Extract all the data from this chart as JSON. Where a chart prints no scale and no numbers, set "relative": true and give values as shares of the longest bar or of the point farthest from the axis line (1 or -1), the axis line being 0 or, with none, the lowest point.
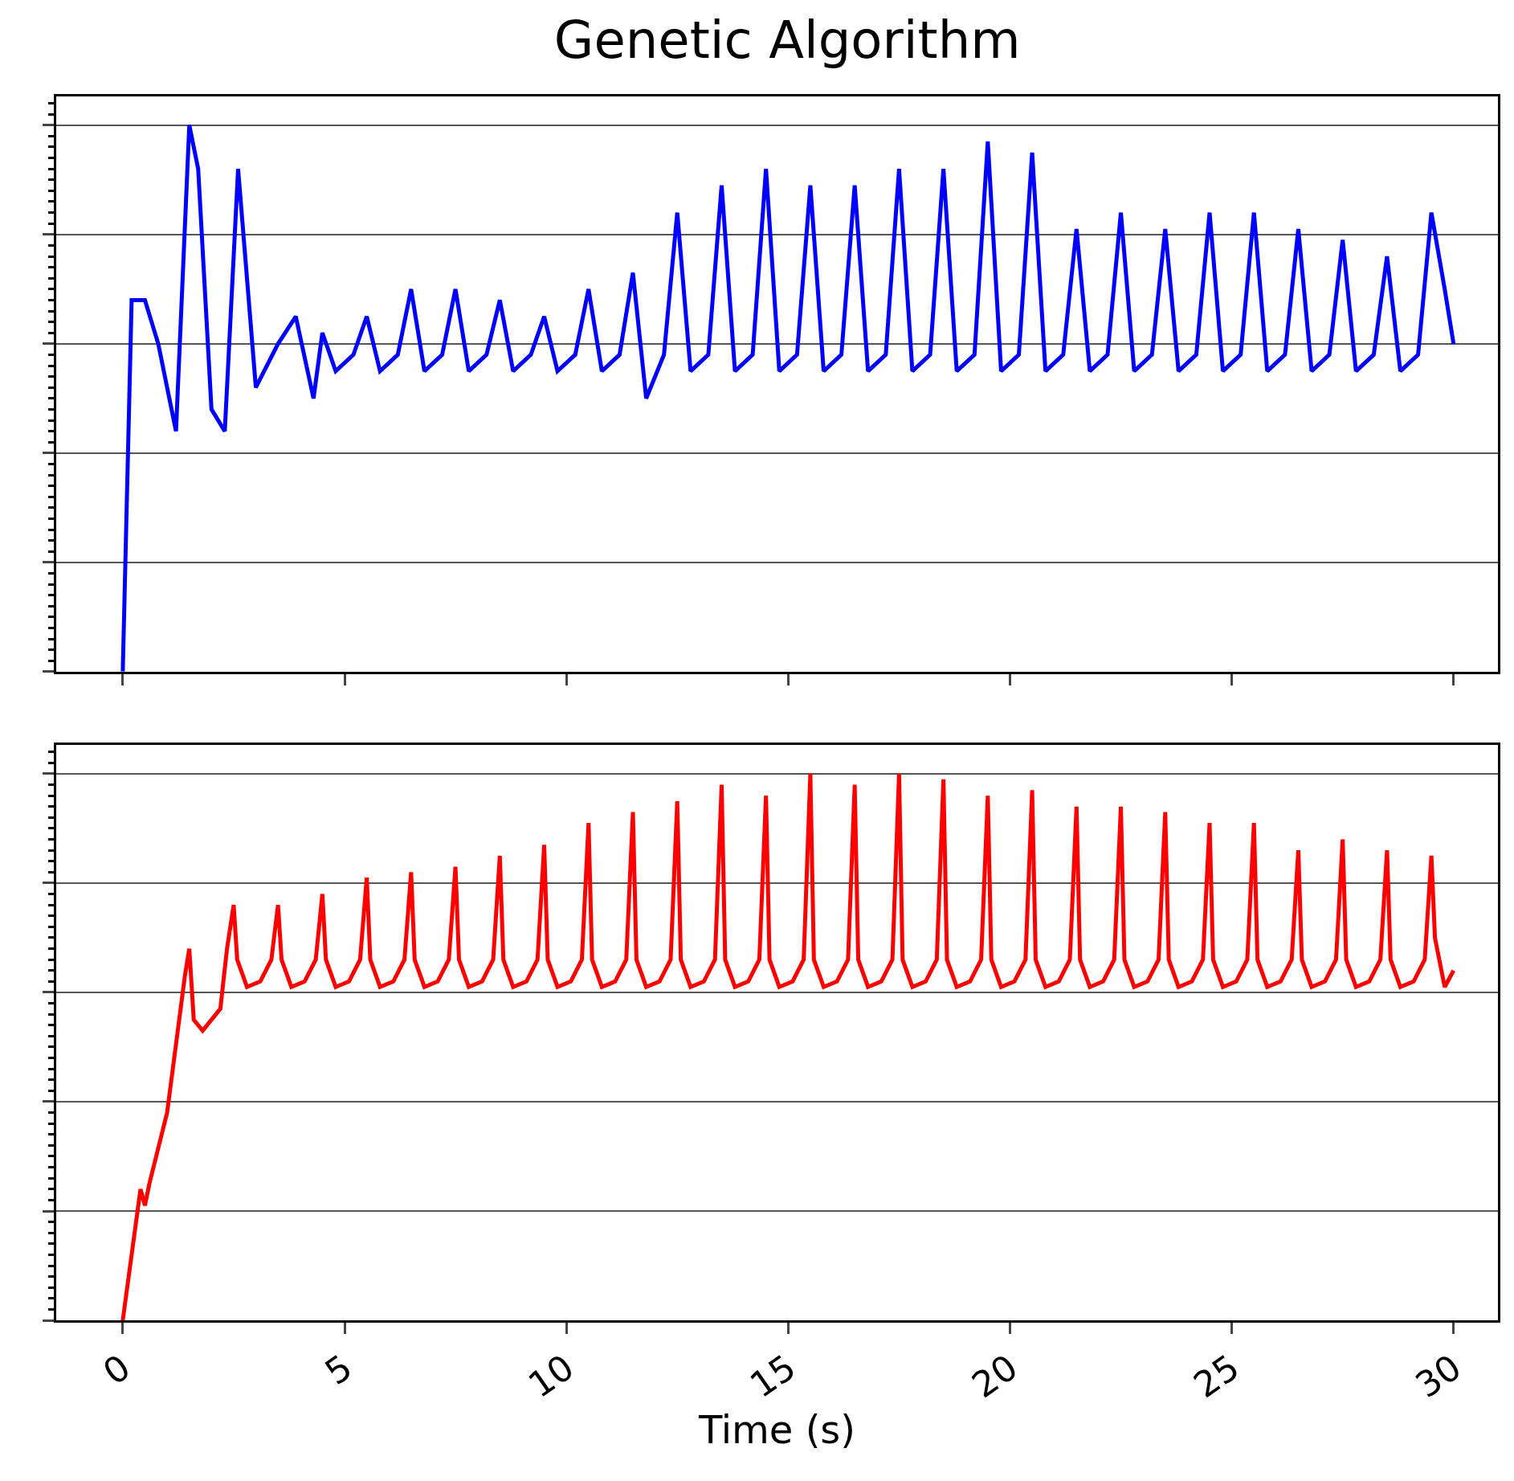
{
  "chart_data": [
    {
      "type": "line",
      "title": "Genetic Algorithm",
      "relative": true,
      "xlim": [
        -1.5,
        31
      ],
      "xticks": [
        0,
        5,
        10,
        15,
        20,
        25,
        30
      ],
      "grid": "y",
      "tick_labels": false,
      "line_style": "solid",
      "x": [
        0,
        0.2,
        0.5,
        0.8,
        1.2,
        1.5,
        1.7,
        2.0,
        2.3,
        2.6,
        3.0,
        3.5,
        3.9,
        4.3,
        4.5,
        4.8,
        5.2,
        5.5,
        5.8,
        6.2,
        6.5,
        6.8,
        7.2,
        7.5,
        7.8,
        8.2,
        8.5,
        8.8,
        9.2,
        9.5,
        9.8,
        10.2,
        10.5,
        10.8,
        11.2,
        11.5,
        11.8,
        12.2,
        12.5,
        12.8,
        13.2,
        13.5,
        13.8,
        14.2,
        14.5,
        14.8,
        15.2,
        15.5,
        15.8,
        16.2,
        16.5,
        16.8,
        17.2,
        17.5,
        17.8,
        18.2,
        18.5,
        18.8,
        19.2,
        19.5,
        19.8,
        20.2,
        20.5,
        20.8,
        21.2,
        21.5,
        21.8,
        22.2,
        22.5,
        22.8,
        23.2,
        23.5,
        23.8,
        24.2,
        24.5,
        24.8,
        25.2,
        25.5,
        25.8,
        26.2,
        26.5,
        26.8,
        27.2,
        27.5,
        27.8,
        28.2,
        28.5,
        28.8,
        29.2,
        29.5,
        29.8,
        30
      ],
      "series": [
        {
          "color": "#0000ff",
          "values": [
            0,
            0.68,
            0.68,
            0.6,
            0.44,
            1,
            0.92,
            0.48,
            0.44,
            0.92,
            0.52,
            0.6,
            0.65,
            0.5,
            0.62,
            0.55,
            0.58,
            0.65,
            0.55,
            0.58,
            0.7,
            0.55,
            0.58,
            0.7,
            0.55,
            0.58,
            0.68,
            0.55,
            0.58,
            0.65,
            0.55,
            0.58,
            0.7,
            0.55,
            0.58,
            0.73,
            0.5,
            0.58,
            0.84,
            0.55,
            0.58,
            0.89,
            0.55,
            0.58,
            0.92,
            0.55,
            0.58,
            0.89,
            0.55,
            0.58,
            0.89,
            0.55,
            0.58,
            0.92,
            0.55,
            0.58,
            0.92,
            0.55,
            0.58,
            0.97,
            0.55,
            0.58,
            0.95,
            0.55,
            0.58,
            0.81,
            0.55,
            0.58,
            0.84,
            0.55,
            0.58,
            0.81,
            0.55,
            0.58,
            0.84,
            0.55,
            0.58,
            0.84,
            0.55,
            0.58,
            0.81,
            0.55,
            0.58,
            0.79,
            0.55,
            0.58,
            0.76,
            0.55,
            0.58,
            0.84,
            0.7,
            0.6
          ]
        }
      ]
    },
    {
      "type": "line",
      "xlabel": "Time (s)",
      "relative": true,
      "xlim": [
        -1.5,
        31
      ],
      "xticks": [
        0,
        5,
        10,
        15,
        20,
        25,
        30
      ],
      "grid": "y",
      "tick_labels": "x",
      "line_style": "solid",
      "x": [
        0,
        0.4,
        0.5,
        0.6,
        1.0,
        1.4,
        1.5,
        1.6,
        1.8,
        2.2,
        2.35,
        2.5,
        2.58,
        2.8,
        3.1,
        3.35,
        3.5,
        3.58,
        3.8,
        4.1,
        4.35,
        4.5,
        4.58,
        4.8,
        5.1,
        5.35,
        5.5,
        5.58,
        5.8,
        6.1,
        6.35,
        6.5,
        6.58,
        6.8,
        7.1,
        7.35,
        7.5,
        7.58,
        7.8,
        8.1,
        8.35,
        8.5,
        8.58,
        8.8,
        9.1,
        9.35,
        9.5,
        9.58,
        9.8,
        10.1,
        10.35,
        10.5,
        10.58,
        10.8,
        11.1,
        11.35,
        11.5,
        11.58,
        11.8,
        12.1,
        12.35,
        12.5,
        12.58,
        12.8,
        13.1,
        13.35,
        13.5,
        13.58,
        13.8,
        14.1,
        14.35,
        14.5,
        14.58,
        14.8,
        15.1,
        15.35,
        15.5,
        15.58,
        15.8,
        16.1,
        16.35,
        16.5,
        16.58,
        16.8,
        17.1,
        17.35,
        17.5,
        17.58,
        17.8,
        18.1,
        18.35,
        18.5,
        18.58,
        18.8,
        19.1,
        19.35,
        19.5,
        19.58,
        19.8,
        20.1,
        20.35,
        20.5,
        20.58,
        20.8,
        21.1,
        21.35,
        21.5,
        21.58,
        21.8,
        22.1,
        22.35,
        22.5,
        22.58,
        22.8,
        23.1,
        23.35,
        23.5,
        23.58,
        23.8,
        24.1,
        24.35,
        24.5,
        24.58,
        24.8,
        25.1,
        25.35,
        25.5,
        25.58,
        25.8,
        26.1,
        26.35,
        26.5,
        26.58,
        26.8,
        27.1,
        27.35,
        27.5,
        27.58,
        27.8,
        28.1,
        28.35,
        28.5,
        28.58,
        28.8,
        29.1,
        29.35,
        29.5,
        29.58,
        29.8,
        30
      ],
      "series": [
        {
          "color": "#ff0000",
          "values": [
            0,
            0.24,
            0.21,
            0.25,
            0.38,
            0.63,
            0.68,
            0.55,
            0.53,
            0.57,
            0.68,
            0.76,
            0.66,
            0.61,
            0.62,
            0.66,
            0.76,
            0.66,
            0.61,
            0.62,
            0.66,
            0.78,
            0.66,
            0.61,
            0.62,
            0.66,
            0.81,
            0.66,
            0.61,
            0.62,
            0.66,
            0.82,
            0.66,
            0.61,
            0.62,
            0.66,
            0.83,
            0.66,
            0.61,
            0.62,
            0.66,
            0.85,
            0.66,
            0.61,
            0.62,
            0.66,
            0.87,
            0.66,
            0.61,
            0.62,
            0.66,
            0.91,
            0.66,
            0.61,
            0.62,
            0.66,
            0.93,
            0.66,
            0.61,
            0.62,
            0.66,
            0.95,
            0.66,
            0.61,
            0.62,
            0.66,
            0.98,
            0.66,
            0.61,
            0.62,
            0.66,
            0.96,
            0.66,
            0.61,
            0.62,
            0.66,
            1,
            0.66,
            0.61,
            0.62,
            0.66,
            0.98,
            0.66,
            0.61,
            0.62,
            0.66,
            1,
            0.66,
            0.61,
            0.62,
            0.66,
            0.99,
            0.66,
            0.61,
            0.62,
            0.66,
            0.96,
            0.66,
            0.61,
            0.62,
            0.66,
            0.97,
            0.66,
            0.61,
            0.62,
            0.66,
            0.94,
            0.66,
            0.61,
            0.62,
            0.66,
            0.94,
            0.66,
            0.61,
            0.62,
            0.66,
            0.93,
            0.66,
            0.61,
            0.62,
            0.66,
            0.91,
            0.66,
            0.61,
            0.62,
            0.66,
            0.91,
            0.66,
            0.61,
            0.62,
            0.66,
            0.86,
            0.66,
            0.61,
            0.62,
            0.66,
            0.88,
            0.66,
            0.61,
            0.62,
            0.66,
            0.86,
            0.66,
            0.61,
            0.62,
            0.66,
            0.85,
            0.7,
            0.61,
            0.64
          ]
        }
      ]
    }
  ]
}
